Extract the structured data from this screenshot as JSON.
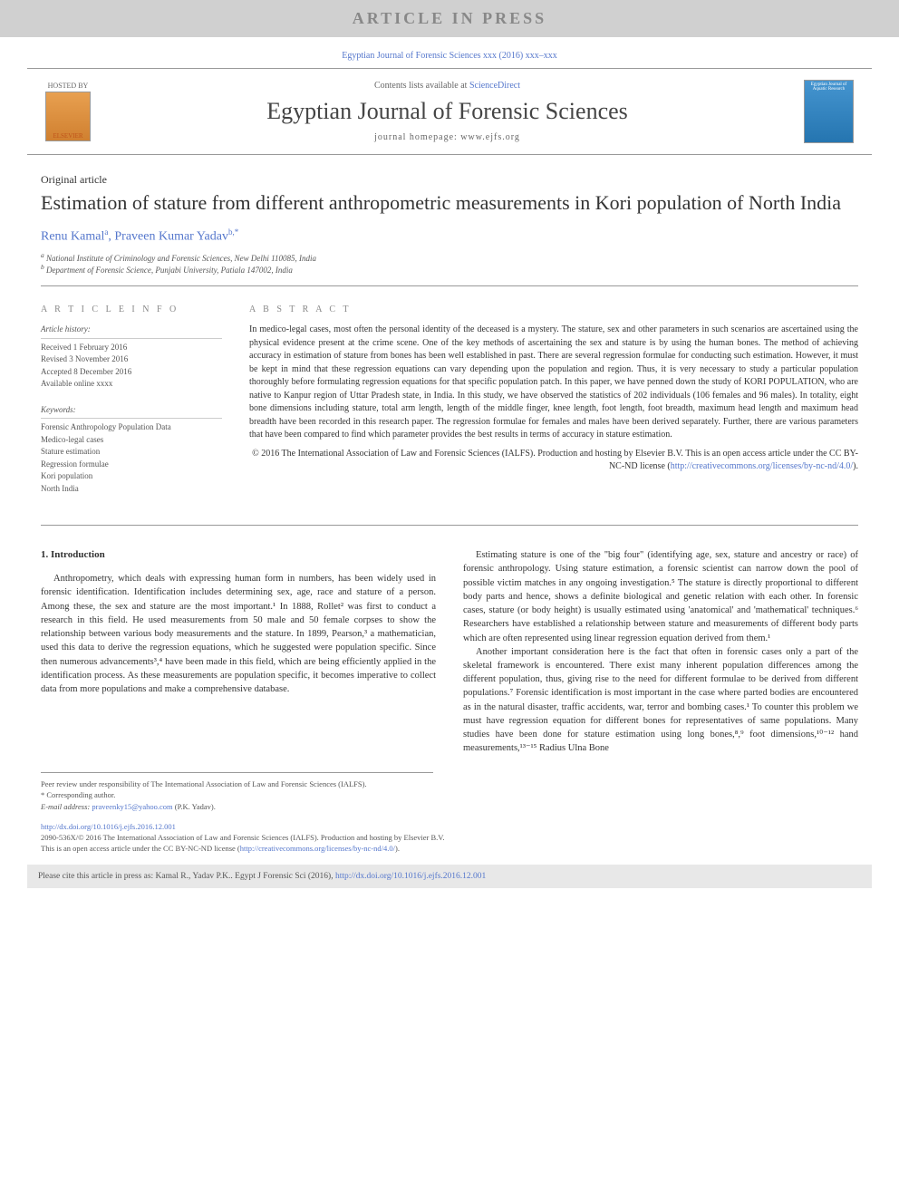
{
  "banner": {
    "text": "ARTICLE IN PRESS",
    "bg_color": "#d0d0d0",
    "text_color": "#888888"
  },
  "journal_ref": "Egyptian Journal of Forensic Sciences xxx (2016) xxx–xxx",
  "header": {
    "hosted_by": "HOSTED BY",
    "publisher": "ELSEVIER",
    "contents_prefix": "Contents lists available at ",
    "contents_link": "ScienceDirect",
    "journal_name": "Egyptian Journal of Forensic Sciences",
    "homepage": "journal homepage: www.ejfs.org",
    "cover_label": "Egyptian Journal of Aquatic Research"
  },
  "article": {
    "type": "Original article",
    "title": "Estimation of stature from different anthropometric measurements in Kori population of North India",
    "authors_html": "Renu Kamal",
    "author1": "Renu Kamal",
    "author1_aff": "a",
    "author2": "Praveen Kumar Yadav",
    "author2_aff": "b,*",
    "affiliations": {
      "a": "National Institute of Criminology and Forensic Sciences, New Delhi 110085, India",
      "b": "Department of Forensic Science, Punjabi University, Patiala 147002, India"
    }
  },
  "info": {
    "heading": "A R T I C L E   I N F O",
    "history_head": "Article history:",
    "received": "Received 1 February 2016",
    "revised": "Revised 3 November 2016",
    "accepted": "Accepted 8 December 2016",
    "online": "Available online xxxx",
    "keywords_head": "Keywords:",
    "keywords": [
      "Forensic Anthropology Population Data",
      "Medico-legal cases",
      "Stature estimation",
      "Regression formulae",
      "Kori population",
      "North India"
    ]
  },
  "abstract": {
    "heading": "A B S T R A C T",
    "text": "In medico-legal cases, most often the personal identity of the deceased is a mystery. The stature, sex and other parameters in such scenarios are ascertained using the physical evidence present at the crime scene. One of the key methods of ascertaining the sex and stature is by using the human bones. The method of achieving accuracy in estimation of stature from bones has been well established in past. There are several regression formulae for conducting such estimation. However, it must be kept in mind that these regression equations can vary depending upon the population and region. Thus, it is very necessary to study a particular population thoroughly before formulating regression equations for that specific population patch. In this paper, we have penned down the study of KORI POPULATION, who are native to Kanpur region of Uttar Pradesh state, in India. In this study, we have observed the statistics of 202 individuals (106 females and 96 males). In totality, eight bone dimensions including stature, total arm length, length of the middle finger, knee length, foot length, foot breadth, maximum head length and maximum head breadth have been recorded in this research paper. The regression formulae for females and males have been derived separately. Further, there are various parameters that have been compared to find which parameter provides the best results in terms of accuracy in stature estimation.",
    "copyright": "© 2016 The International Association of Law and Forensic Sciences (IALFS). Production and hosting by Elsevier B.V. This is an open access article under the CC BY-NC-ND license (",
    "license_url": "http://creativecommons.org/licenses/by-nc-nd/4.0/",
    "copyright_close": ")."
  },
  "intro": {
    "heading": "1. Introduction",
    "p1": "Anthropometry, which deals with expressing human form in numbers, has been widely used in forensic identification. Identification includes determining sex, age, race and stature of a person. Among these, the sex and stature are the most important.¹ In 1888, Rollet² was first to conduct a research in this field. He used measurements from 50 male and 50 female corpses to show the relationship between various body measurements and the stature. In 1899, Pearson,³ a mathematician, used this data to derive the regression equations, which he suggested were population specific. Since then numerous advancements³,⁴ have been made in this field, which are being efficiently applied in the identification process. As these measurements are population specific, it becomes imperative to collect data from more populations and make a comprehensive database.",
    "p2": "Estimating stature is one of the \"big four\" (identifying age, sex, stature and ancestry or race) of forensic anthropology. Using stature estimation, a forensic scientist can narrow down the pool of possible victim matches in any ongoing investigation.⁵ The stature is directly proportional to different body parts and hence, shows a definite biological and genetic relation with each other. In forensic cases, stature (or body height) is usually estimated using 'anatomical' and 'mathematical' techniques.⁶ Researchers have established a relationship between stature and measurements of different body parts which are often represented using linear regression equation derived from them.¹",
    "p3": "Another important consideration here is the fact that often in forensic cases only a part of the skeletal framework is encountered. There exist many inherent population differences among the different population, thus, giving rise to the need for different formulae to be derived from different populations.⁷ Forensic identification is most important in the case where parted bodies are encountered as in the natural disaster, traffic accidents, war, terror and bombing cases.¹ To counter this problem we must have regression equation for different bones for representatives of same populations. Many studies have been done for stature estimation using long bones,⁸,⁹ foot dimensions,¹⁰⁻¹² hand measurements,¹³⁻¹⁵ Radius Ulna Bone"
  },
  "footer": {
    "peer": "Peer review under responsibility of The International Association of Law and Forensic Sciences (IALFS).",
    "corr_marker": "* Corresponding author.",
    "email_label": "E-mail address: ",
    "email": "praveenky15@yahoo.com",
    "email_suffix": " (P.K. Yadav)."
  },
  "doi": {
    "url": "http://dx.doi.org/10.1016/j.ejfs.2016.12.001",
    "issn_line": "2090-536X/© 2016 The International Association of Law and Forensic Sciences (IALFS). Production and hosting by Elsevier B.V.",
    "license_line": "This is an open access article under the CC BY-NC-ND license (",
    "license_url": "http://creativecommons.org/licenses/by-nc-nd/4.0/",
    "license_close": ")."
  },
  "cite": {
    "text": "Please cite this article in press as: Kamal R., Yadav P.K.. Egypt J Forensic Sci (2016), ",
    "url": "http://dx.doi.org/10.1016/j.ejfs.2016.12.001"
  },
  "colors": {
    "link": "#5577cc",
    "banner_bg": "#d0d0d0",
    "cite_bg": "#e8e8e8"
  }
}
